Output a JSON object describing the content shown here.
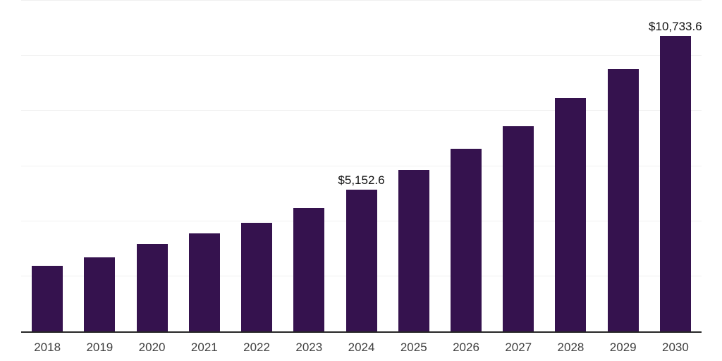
{
  "chart_data": {
    "type": "bar",
    "title": "",
    "xlabel": "",
    "ylabel": "",
    "categories": [
      "2018",
      "2019",
      "2020",
      "2021",
      "2022",
      "2023",
      "2024",
      "2025",
      "2026",
      "2027",
      "2028",
      "2029",
      "2030"
    ],
    "values": [
      2380,
      2690,
      3180,
      3560,
      3930,
      4490,
      5152.6,
      5860,
      6640,
      7440,
      8470,
      9530,
      10733.6
    ],
    "data_labels": {
      "2024": "$5,152.6",
      "2030": "$10,733.6"
    },
    "ylim": [
      0,
      12000
    ],
    "gridline_interval": 2000,
    "grid": "horizontal-only",
    "y_axis_tick_labels": "none",
    "legend_position": "none",
    "value_prefix": "$"
  },
  "style": {
    "background_color": "#ffffff",
    "bar_color": "#35124e",
    "gridline_color": "#f0f0f0",
    "axis_line_color": "#262626",
    "tick_label_color": "#404040",
    "data_label_color": "#111111"
  }
}
